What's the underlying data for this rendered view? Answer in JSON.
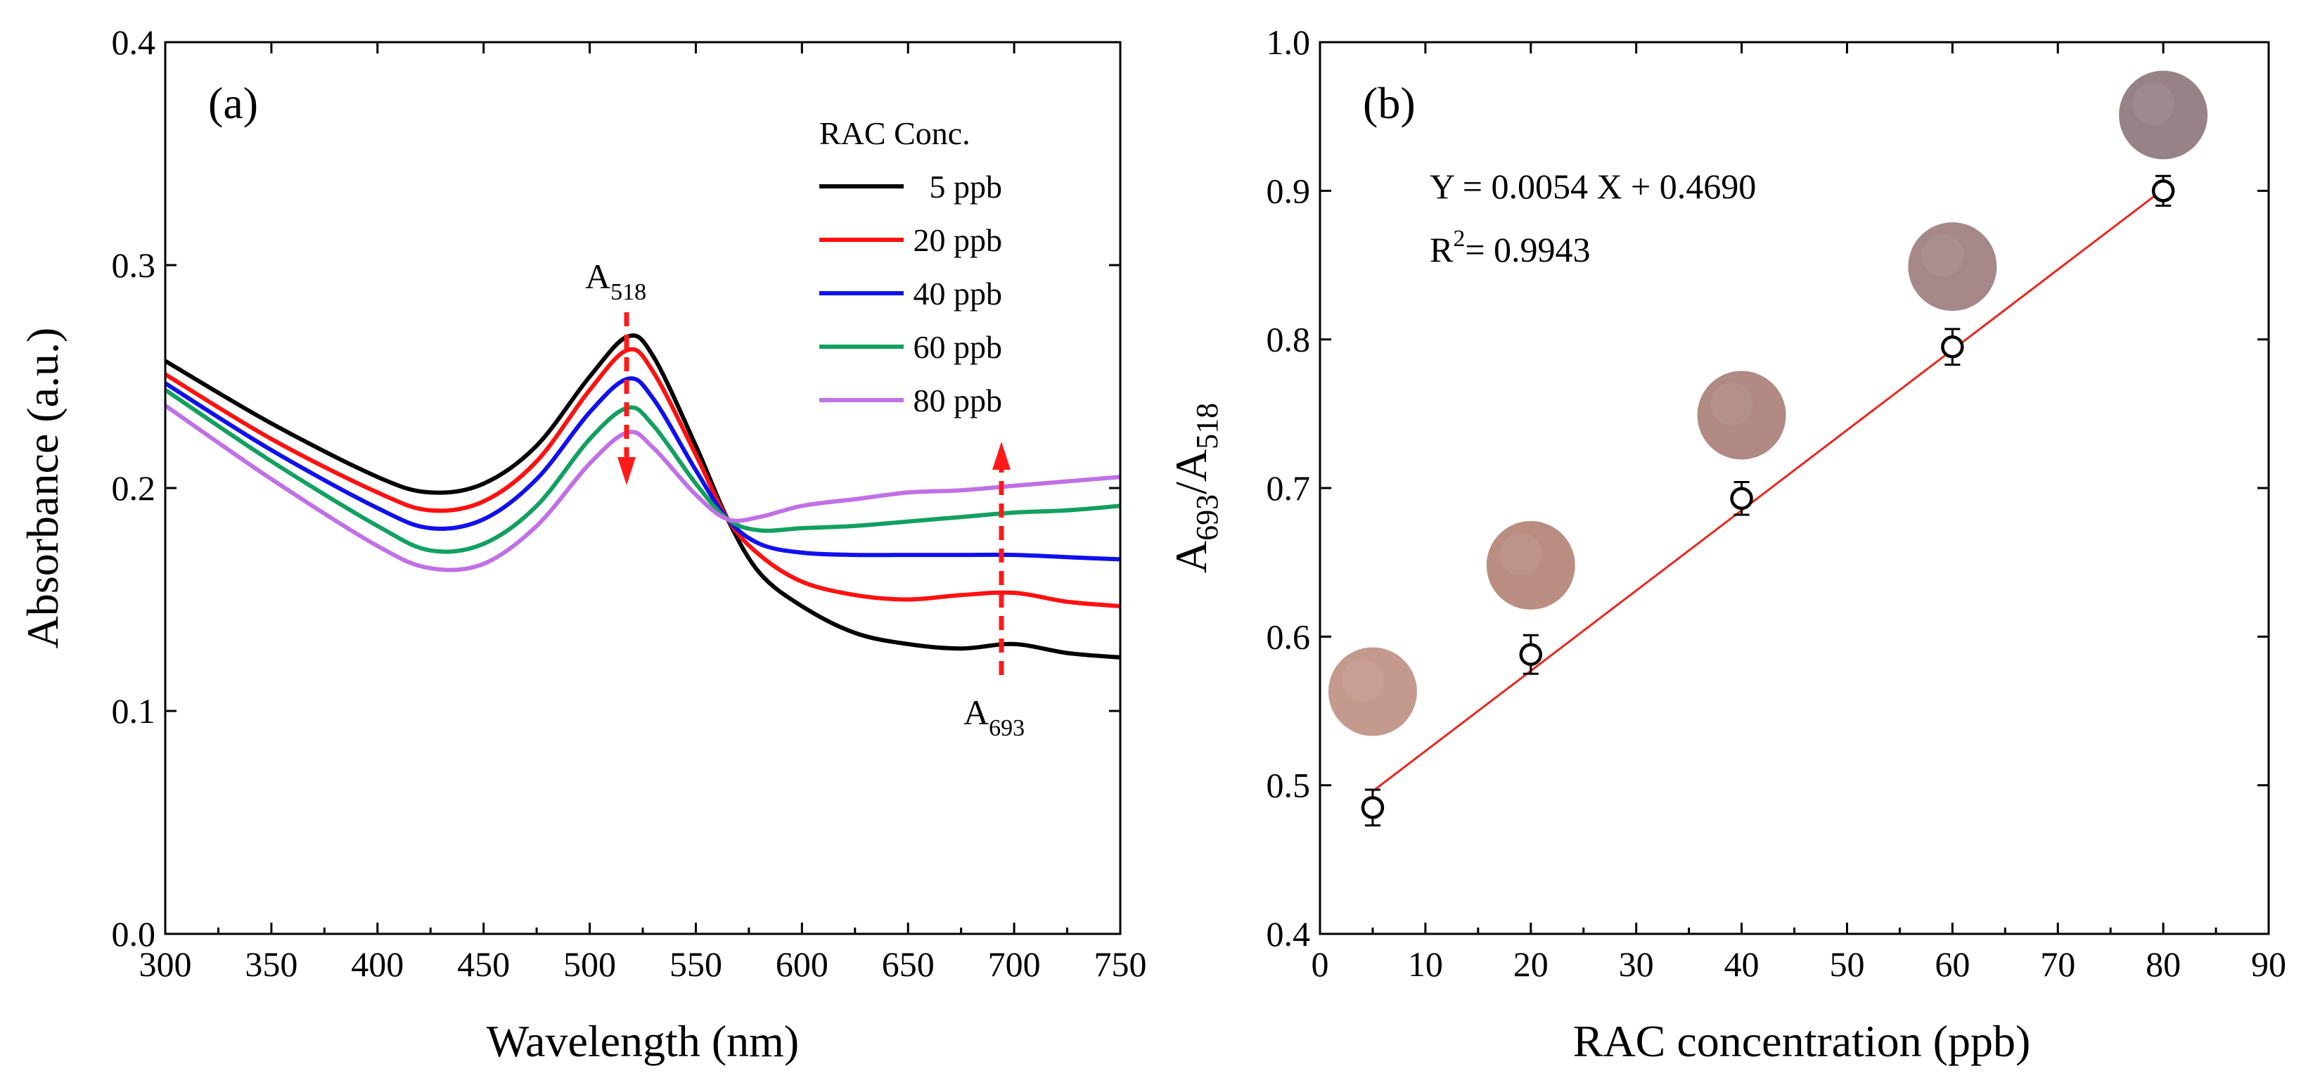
{
  "colors": {
    "arrow": "#ff1a1a",
    "fit_line": "#e8281f",
    "swatch_edge": "#ffffff"
  },
  "panel_a": {
    "label": "(a)",
    "legend_title": "RAC Conc.",
    "peak_label_main": "A",
    "peak_label_sub": "518",
    "valley_label_main": "A",
    "valley_label_sub": "693"
  },
  "panel_b": {
    "label": "(b)",
    "equation": "Y = 0.0054 X + 0.4690",
    "r2_prefix": "R",
    "r2_sup": "2",
    "r2_value": "= 0.9943",
    "ylabel_parts": [
      "A",
      "693",
      "/A",
      "518"
    ]
  },
  "chart_data": [
    {
      "type": "line",
      "title": "",
      "xlabel": "Wavelength (nm)",
      "ylabel": "Absorbance (a.u.)",
      "xlim": [
        300,
        750
      ],
      "ylim": [
        0.0,
        0.4
      ],
      "xticks": [
        300,
        350,
        400,
        450,
        500,
        550,
        600,
        650,
        700,
        750
      ],
      "yticks": [
        "0.0",
        "0.1",
        "0.2",
        "0.3",
        "0.4"
      ],
      "legend_position": "top-right",
      "x": [
        300,
        350,
        400,
        425,
        450,
        475,
        500,
        518,
        530,
        550,
        565,
        580,
        600,
        625,
        650,
        675,
        700,
        725,
        750
      ],
      "series": [
        {
          "name": "5 ppb",
          "color": "#000000",
          "values": [
            0.257,
            0.229,
            0.205,
            0.198,
            0.202,
            0.219,
            0.25,
            0.268,
            0.259,
            0.219,
            0.186,
            0.162,
            0.147,
            0.135,
            0.13,
            0.128,
            0.13,
            0.126,
            0.124
          ]
        },
        {
          "name": "20 ppb",
          "color": "#ff1010",
          "values": [
            0.251,
            0.222,
            0.198,
            0.19,
            0.194,
            0.212,
            0.244,
            0.262,
            0.252,
            0.215,
            0.186,
            0.17,
            0.158,
            0.152,
            0.15,
            0.152,
            0.153,
            0.149,
            0.147
          ]
        },
        {
          "name": "40 ppb",
          "color": "#1010ee",
          "values": [
            0.247,
            0.217,
            0.191,
            0.182,
            0.186,
            0.204,
            0.234,
            0.249,
            0.24,
            0.208,
            0.186,
            0.175,
            0.171,
            0.17,
            0.17,
            0.17,
            0.17,
            0.169,
            0.168
          ]
        },
        {
          "name": "60 ppb",
          "color": "#12a060",
          "values": [
            0.244,
            0.212,
            0.183,
            0.172,
            0.175,
            0.192,
            0.222,
            0.236,
            0.228,
            0.202,
            0.186,
            0.181,
            0.182,
            0.183,
            0.185,
            0.187,
            0.189,
            0.19,
            0.192
          ]
        },
        {
          "name": "80 ppb",
          "color": "#c070e6",
          "values": [
            0.237,
            0.204,
            0.174,
            0.164,
            0.166,
            0.183,
            0.211,
            0.225,
            0.218,
            0.197,
            0.186,
            0.187,
            0.192,
            0.195,
            0.198,
            0.199,
            0.201,
            0.203,
            0.205
          ]
        }
      ]
    },
    {
      "type": "scatter",
      "title": "",
      "xlabel": "RAC concentration (ppb)",
      "ylabel": "A693/A518",
      "xlim": [
        0,
        90
      ],
      "ylim": [
        0.4,
        1.0
      ],
      "xticks": [
        0,
        10,
        20,
        30,
        40,
        50,
        60,
        70,
        80,
        90
      ],
      "yticks": [
        "0.4",
        "0.5",
        "0.6",
        "0.7",
        "0.8",
        "0.9",
        "1.0"
      ],
      "x": [
        5,
        20,
        40,
        60,
        80
      ],
      "y": [
        0.485,
        0.588,
        0.693,
        0.795,
        0.9
      ],
      "error": [
        0.012,
        0.013,
        0.011,
        0.012,
        0.01
      ],
      "fit": {
        "slope": 0.0054,
        "intercept": 0.469,
        "x_range": [
          5,
          80
        ],
        "color": "#e8281f"
      },
      "swatches": [
        {
          "x": 5,
          "y": 0.563,
          "color": "#c49a8f"
        },
        {
          "x": 20,
          "y": 0.648,
          "color": "#ba8d83"
        },
        {
          "x": 40,
          "y": 0.749,
          "color": "#b08a83"
        },
        {
          "x": 60,
          "y": 0.849,
          "color": "#a6888a"
        },
        {
          "x": 80,
          "y": 0.951,
          "color": "#978387"
        }
      ]
    }
  ]
}
